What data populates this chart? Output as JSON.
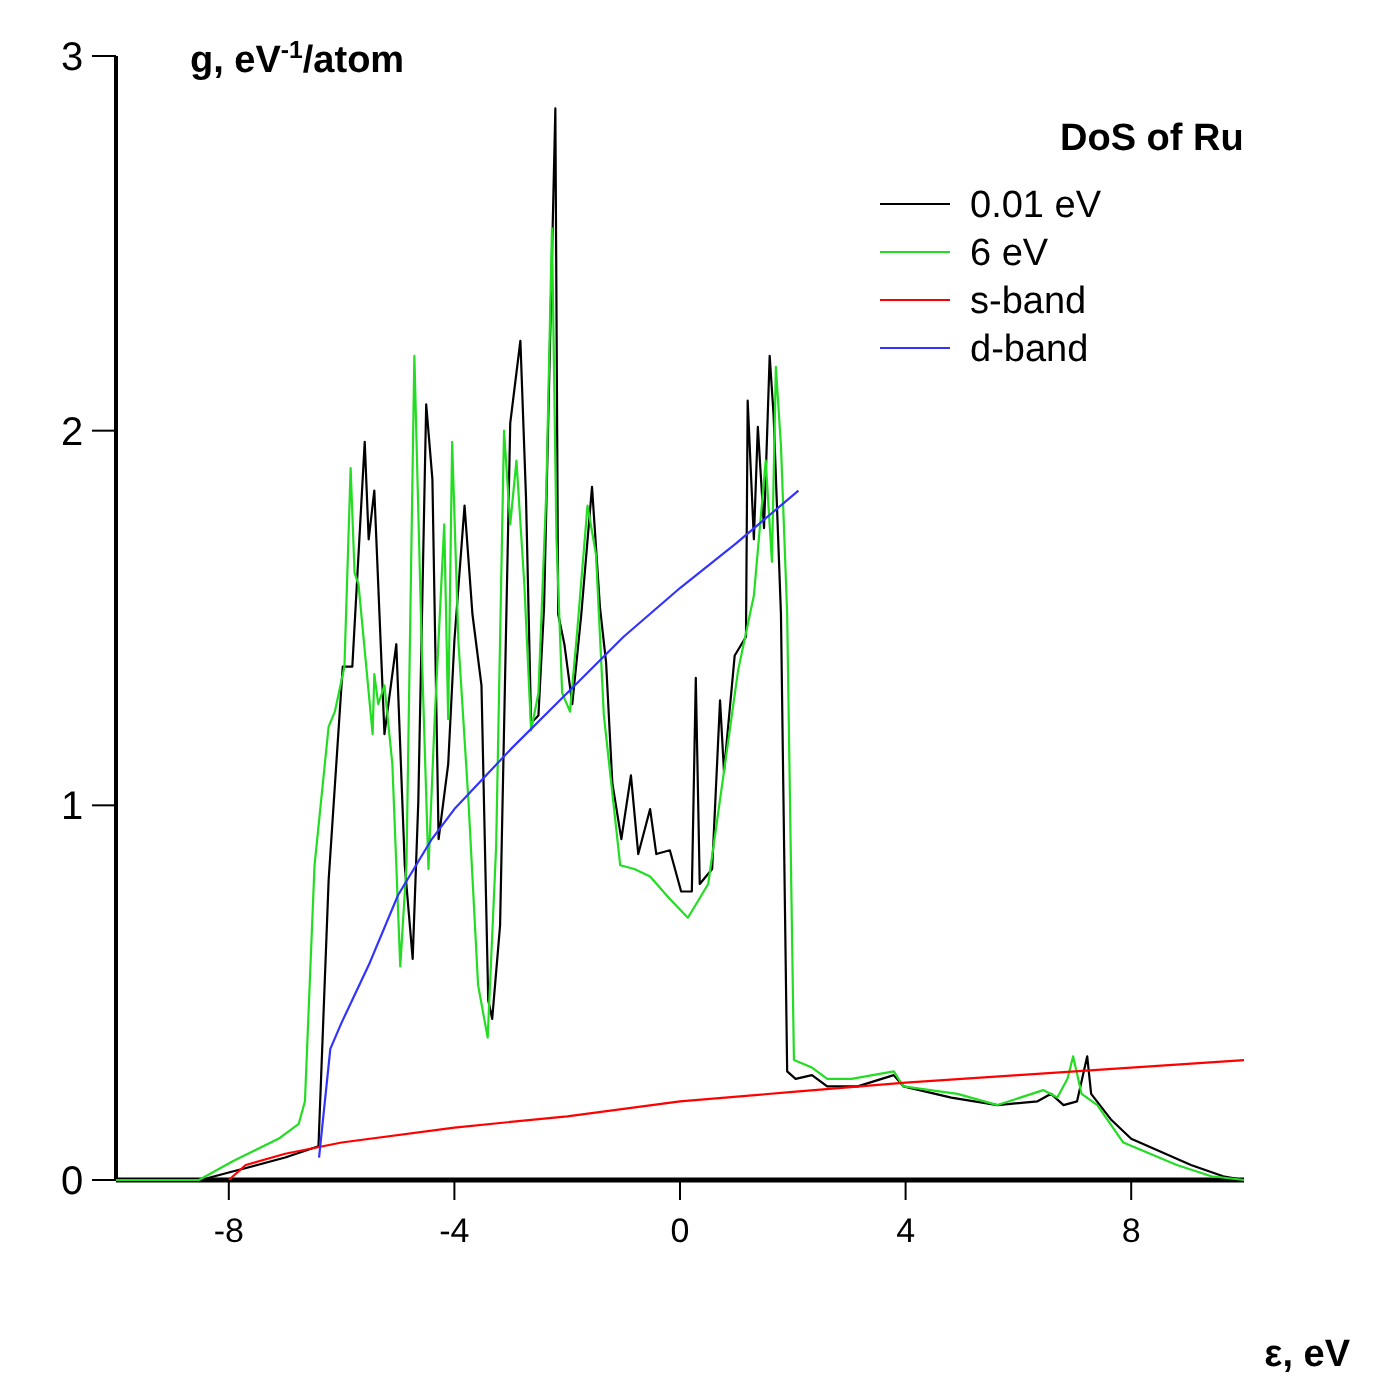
{
  "chart_data": {
    "type": "line",
    "xlabel": "ε, eV",
    "ylabel": "g, eV$^{-1}$/atom",
    "legend_title": "DoS of Ru",
    "legend": "top right",
    "grid": false,
    "marker": "none",
    "line_style": "solid",
    "xlim": [
      -10,
      10
    ],
    "ylim": [
      0,
      3
    ],
    "xticks": [
      -8,
      -4,
      0,
      4,
      8
    ],
    "yticks": [
      0,
      1,
      2,
      3
    ],
    "series": [
      {
        "name": "0.01 eV",
        "color": "#000000",
        "x": [
          -10,
          -8.5,
          -8,
          -7,
          -6.41,
          -6.23,
          -5.98,
          -5.81,
          -5.59,
          -5.52,
          -5.42,
          -5.24,
          -5.03,
          -4.88,
          -4.74,
          -4.64,
          -4.5,
          -4.39,
          -4.28,
          -4.11,
          -4,
          -3.82,
          -3.68,
          -3.52,
          -3.4,
          -3.33,
          -3.19,
          -3.01,
          -2.83,
          -2.73,
          -2.64,
          -2.51,
          -2.41,
          -2.34,
          -2.21,
          -2.16,
          -2.05,
          -1.91,
          -1.75,
          -1.56,
          -1.42,
          -1.31,
          -1.2,
          -1.04,
          -0.87,
          -0.74,
          -0.53,
          -0.42,
          -0.18,
          0.02,
          0.21,
          0.28,
          0.35,
          0.57,
          0.71,
          0.78,
          0.97,
          1.17,
          1.2,
          1.31,
          1.38,
          1.49,
          1.59,
          1.66,
          1.79,
          1.9,
          2.05,
          2.34,
          2.61,
          3.15,
          3.79,
          3.96,
          4.81,
          5.63,
          6.34,
          6.58,
          6.8,
          7.04,
          7.22,
          7.29,
          7.65,
          8,
          9.06,
          9.63,
          10
        ],
        "values": [
          0,
          0,
          0.02,
          0.06,
          0.09,
          0.8,
          1.37,
          1.37,
          1.97,
          1.71,
          1.84,
          1.19,
          1.43,
          0.84,
          0.59,
          1.01,
          2.07,
          1.87,
          0.91,
          1.11,
          1.44,
          1.8,
          1.51,
          1.32,
          0.48,
          0.43,
          0.68,
          2.02,
          2.24,
          1.82,
          1.22,
          1.24,
          1.53,
          2,
          2.86,
          1.51,
          1.43,
          1.27,
          1.51,
          1.85,
          1.53,
          1.38,
          1.06,
          0.91,
          1.08,
          0.87,
          0.99,
          0.87,
          0.88,
          0.77,
          0.77,
          1.34,
          0.79,
          0.83,
          1.28,
          1.09,
          1.4,
          1.45,
          2.08,
          1.71,
          2.01,
          1.74,
          2.2,
          2.04,
          1.51,
          0.29,
          0.27,
          0.28,
          0.25,
          0.25,
          0.28,
          0.25,
          0.22,
          0.2,
          0.21,
          0.23,
          0.2,
          0.21,
          0.33,
          0.23,
          0.16,
          0.11,
          0.04,
          0.01,
          0
        ]
      },
      {
        "name": "6 eV",
        "color": "#22dd22",
        "x": [
          -10,
          -8.53,
          -7.93,
          -7.12,
          -6.76,
          -6.65,
          -6.48,
          -6.23,
          -6.12,
          -5.95,
          -5.84,
          -5.77,
          -5.7,
          -5.45,
          -5.42,
          -5.35,
          -5.24,
          -5.1,
          -4.96,
          -4.85,
          -4.71,
          -4.57,
          -4.46,
          -4.35,
          -4.18,
          -4.11,
          -4.04,
          -3.93,
          -3.75,
          -3.58,
          -3.41,
          -3.26,
          -3.12,
          -3.01,
          -2.9,
          -2.76,
          -2.64,
          -2.51,
          -2.37,
          -2.27,
          -2.19,
          -2.09,
          -1.95,
          -1.82,
          -1.64,
          -1.49,
          -1.35,
          -1.06,
          -0.81,
          -0.53,
          -0.18,
          0.14,
          0.5,
          0.77,
          1.03,
          1.31,
          1.52,
          1.63,
          1.7,
          1.79,
          1.9,
          2.02,
          2.34,
          2.61,
          3.04,
          3.79,
          3.96,
          4.92,
          5.63,
          6.44,
          6.69,
          6.87,
          6.97,
          7.12,
          7.4,
          7.86,
          8.81,
          9.42,
          10
        ],
        "values": [
          0,
          0,
          0.05,
          0.11,
          0.15,
          0.21,
          0.84,
          1.21,
          1.25,
          1.37,
          1.9,
          1.62,
          1.59,
          1.19,
          1.35,
          1.27,
          1.32,
          1.11,
          0.57,
          0.84,
          2.2,
          1.37,
          0.83,
          1.23,
          1.75,
          1.23,
          1.97,
          1.44,
          1.01,
          0.52,
          0.38,
          0.89,
          2,
          1.75,
          1.92,
          1.59,
          1.2,
          1.3,
          1.84,
          2.54,
          1.71,
          1.3,
          1.25,
          1.47,
          1.8,
          1.67,
          1.24,
          0.84,
          0.83,
          0.81,
          0.75,
          0.7,
          0.79,
          1.08,
          1.36,
          1.56,
          1.92,
          1.65,
          2.17,
          1.96,
          1.51,
          0.32,
          0.3,
          0.27,
          0.27,
          0.29,
          0.25,
          0.23,
          0.2,
          0.24,
          0.22,
          0.27,
          0.33,
          0.23,
          0.2,
          0.1,
          0.04,
          0.01,
          0
        ]
      },
      {
        "name": "s-band",
        "color": "#ff0000",
        "x": [
          -8,
          -7.7,
          -7,
          -6,
          -4,
          -2,
          0,
          2,
          4,
          6,
          8,
          10
        ],
        "values": [
          0,
          0.04,
          0.07,
          0.1,
          0.14,
          0.17,
          0.21,
          0.235,
          0.26,
          0.28,
          0.3,
          0.32
        ]
      },
      {
        "name": "d-band",
        "color": "#3333ff",
        "x": [
          -6.4,
          -6.2,
          -6,
          -5.5,
          -5,
          -4.4,
          -4,
          -3,
          -2,
          -1,
          0,
          1,
          2.1
        ],
        "values": [
          0.06,
          0.35,
          0.42,
          0.58,
          0.76,
          0.91,
          0.99,
          1.15,
          1.3,
          1.45,
          1.58,
          1.7,
          1.84
        ]
      }
    ]
  }
}
